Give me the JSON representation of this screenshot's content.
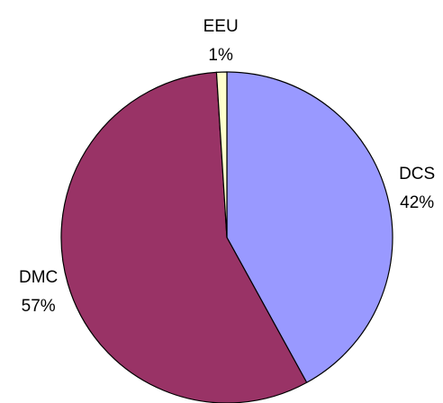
{
  "chart_data": {
    "type": "pie",
    "categories": [
      "DCS",
      "DMC",
      "EEU"
    ],
    "values": [
      42,
      57,
      1
    ],
    "value_labels": [
      "42%",
      "57%",
      "1%"
    ],
    "colors": [
      "#9999ff",
      "#993366",
      "#ffffcc"
    ]
  }
}
